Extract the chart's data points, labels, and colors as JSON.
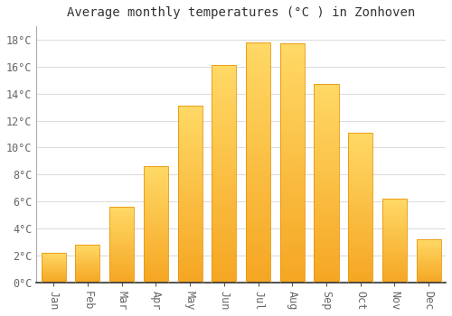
{
  "title": "Average monthly temperatures (°C ) in Zonhoven",
  "months": [
    "Jan",
    "Feb",
    "Mar",
    "Apr",
    "May",
    "Jun",
    "Jul",
    "Aug",
    "Sep",
    "Oct",
    "Nov",
    "Dec"
  ],
  "values": [
    2.2,
    2.8,
    5.6,
    8.6,
    13.1,
    16.1,
    17.8,
    17.7,
    14.7,
    11.1,
    6.2,
    3.2
  ],
  "bar_color_bottom": "#F5A623",
  "bar_color_top": "#FFD966",
  "bar_edge_color": "#E8960A",
  "ylim": [
    0,
    19
  ],
  "yticks": [
    0,
    2,
    4,
    6,
    8,
    10,
    12,
    14,
    16,
    18
  ],
  "ytick_labels": [
    "0°C",
    "2°C",
    "4°C",
    "6°C",
    "8°C",
    "10°C",
    "12°C",
    "14°C",
    "16°C",
    "18°C"
  ],
  "bg_color": "#ffffff",
  "plot_bg_color": "#ffffff",
  "grid_color": "#dddddd",
  "title_fontsize": 10,
  "tick_fontsize": 8.5,
  "font_family": "monospace"
}
